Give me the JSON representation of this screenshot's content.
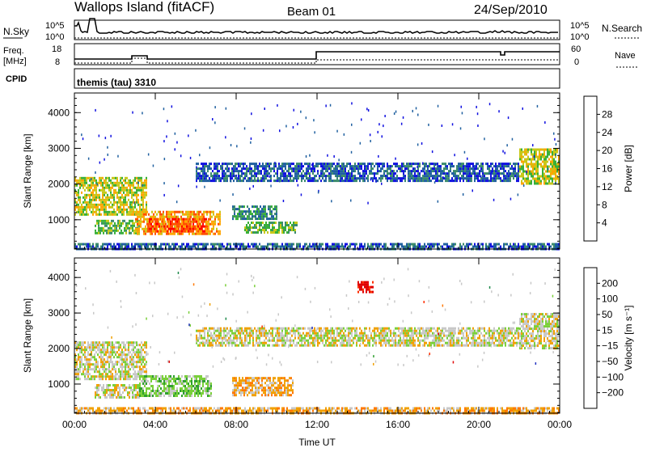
{
  "header": {
    "station": "Wallops Island (fitACF)",
    "beam": "Beam 01",
    "date": "24/Sep/2010"
  },
  "top_panels": {
    "nsky_label": "N.Sky",
    "nsearch_label": "N.Search",
    "nsky_ticks": [
      "10^5",
      "10^0"
    ],
    "freq_label_line1": "Freq.",
    "freq_label_line2": "[MHz]",
    "freq_ticks": [
      "18",
      "8"
    ],
    "nave_label": "Nave",
    "nave_ticks": [
      "60",
      "0"
    ],
    "cpid_label": "CPID",
    "cpid_value": "themis (tau) 3310"
  },
  "chart_data": [
    {
      "type": "heatmap",
      "name": "power",
      "ylabel": "Slant Range [km]",
      "ylim": [
        180,
        4550
      ],
      "yticks": [
        "1000",
        "2000",
        "3000",
        "4000"
      ],
      "xticks": [
        "00:00",
        "04:00",
        "08:00",
        "12:00",
        "16:00",
        "20:00",
        "00:00"
      ],
      "xlim_hours": [
        0,
        24
      ],
      "colorbar_label": "Power [dB]",
      "colorbar_ticks": [
        "4",
        "8",
        "12",
        "16",
        "20",
        "24",
        "28"
      ],
      "colorbar_colors": [
        "#1010e0",
        "#2060a0",
        "#3c8c6c",
        "#38b038",
        "#c8c818",
        "#ffa500",
        "#ff5000",
        "#ff0000"
      ],
      "bands": [
        {
          "t0": 0.0,
          "t1": 3.6,
          "r0": 1150,
          "r1": 2200,
          "level": 4
        },
        {
          "t0": 1.0,
          "t1": 3.2,
          "r0": 650,
          "r1": 1000,
          "level": 3
        },
        {
          "t0": 3.0,
          "t1": 7.2,
          "r0": 600,
          "r1": 1250,
          "level": 5
        },
        {
          "t0": 3.6,
          "t1": 6.5,
          "r0": 700,
          "r1": 1050,
          "level": 6
        },
        {
          "t0": 7.8,
          "t1": 10.0,
          "r0": 1050,
          "r1": 1400,
          "level": 2
        },
        {
          "t0": 8.4,
          "t1": 11.0,
          "r0": 650,
          "r1": 950,
          "level": 3
        },
        {
          "t0": 22.0,
          "t1": 24.0,
          "r0": 2000,
          "r1": 3000,
          "level": 4
        },
        {
          "t0": 6.0,
          "t1": 22.0,
          "r0": 2100,
          "r1": 2600,
          "level": 1
        },
        {
          "t0": 0.0,
          "t1": 24.0,
          "r0": 200,
          "r1": 350,
          "level": 1
        }
      ]
    },
    {
      "type": "heatmap",
      "name": "velocity",
      "ylabel": "Slant Range [km]",
      "ylim": [
        180,
        4550
      ],
      "yticks": [
        "1000",
        "2000",
        "3000",
        "4000"
      ],
      "xticks": [
        "00:00",
        "04:00",
        "08:00",
        "12:00",
        "16:00",
        "20:00",
        "00:00"
      ],
      "xlim_hours": [
        0,
        24
      ],
      "xlabel": "Time UT",
      "colorbar_label": "Velocity [m s⁻¹]",
      "colorbar_ticks": [
        "200",
        "100",
        "50",
        "15",
        "−15",
        "−50",
        "−100",
        "−200"
      ],
      "colorbar_colors": [
        "#2030c0",
        "#1f8a4c",
        "#2fa02f",
        "#7ad03a",
        "#c8c8c8",
        "#f0a000",
        "#ff7800",
        "#ff3000",
        "#e00000"
      ],
      "bands": [
        {
          "t0": 0.0,
          "t1": 3.6,
          "r0": 1150,
          "r1": 2200,
          "level": 4
        },
        {
          "t0": 1.0,
          "t1": 3.2,
          "r0": 650,
          "r1": 1000,
          "level": 4
        },
        {
          "t0": 3.2,
          "t1": 6.8,
          "r0": 650,
          "r1": 1250,
          "level": 3
        },
        {
          "t0": 7.8,
          "t1": 10.8,
          "r0": 700,
          "r1": 1200,
          "level": 5
        },
        {
          "t0": 22.0,
          "t1": 24.0,
          "r0": 2000,
          "r1": 3000,
          "level": 4
        },
        {
          "t0": 6.0,
          "t1": 22.0,
          "r0": 2100,
          "r1": 2600,
          "level": 4
        },
        {
          "t0": 0.0,
          "t1": 24.0,
          "r0": 200,
          "r1": 350,
          "level": 5
        },
        {
          "t0": 14.0,
          "t1": 14.8,
          "r0": 3600,
          "r1": 3900,
          "level": 8
        }
      ]
    }
  ]
}
